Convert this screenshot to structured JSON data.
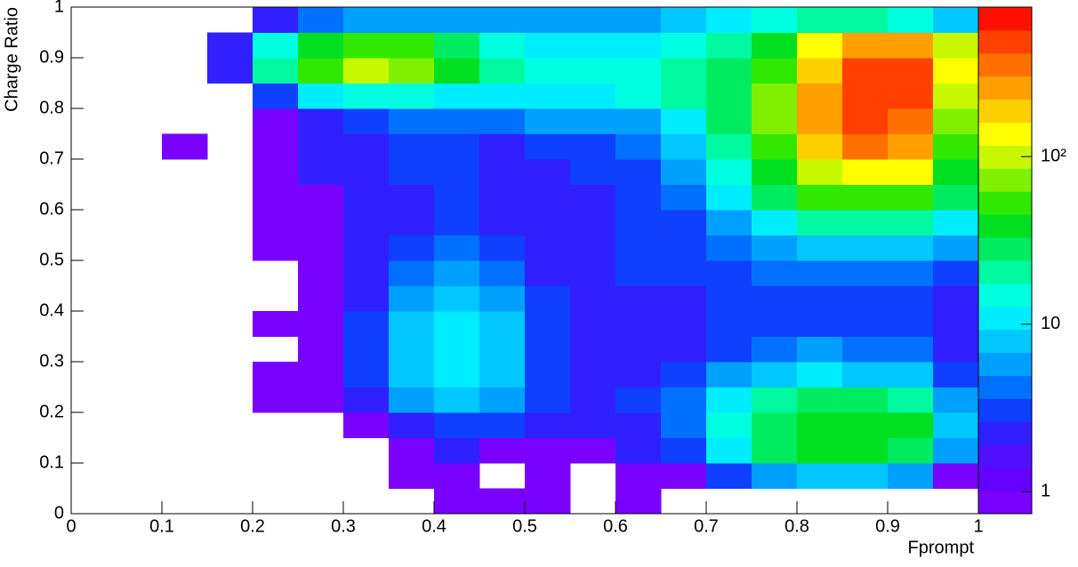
{
  "chart_data": {
    "type": "heatmap",
    "x_label": "Fprompt",
    "y_label": "Charge Ratio",
    "xlim": [
      0,
      1
    ],
    "ylim": [
      0,
      1
    ],
    "xticks": [
      0,
      0.1,
      0.2,
      0.3,
      0.4,
      0.5,
      0.6,
      0.7,
      0.8,
      0.9,
      1
    ],
    "yticks": [
      0,
      0.1,
      0.2,
      0.3,
      0.4,
      0.5,
      0.6,
      0.7,
      0.8,
      0.9,
      1
    ],
    "xbins": [
      0,
      0.05,
      0.1,
      0.15,
      0.2,
      0.25,
      0.3,
      0.35,
      0.4,
      0.45,
      0.5,
      0.55,
      0.6,
      0.65,
      0.7,
      0.75,
      0.8,
      0.85,
      0.9,
      0.95,
      1
    ],
    "ybins": [
      0,
      0.05,
      0.1,
      0.15,
      0.2,
      0.25,
      0.3,
      0.35,
      0.4,
      0.45,
      0.5,
      0.55,
      0.6,
      0.65,
      0.7,
      0.75,
      0.8,
      0.85,
      0.9,
      0.95,
      1
    ],
    "z": [
      [
        null,
        null,
        null,
        null,
        null,
        null,
        null,
        null,
        1,
        1,
        1,
        null,
        1,
        null,
        null,
        null,
        null,
        null,
        null,
        null
      ],
      [
        null,
        null,
        null,
        null,
        null,
        null,
        null,
        1,
        1,
        null,
        1,
        null,
        1,
        1,
        3,
        6,
        8,
        8,
        6,
        1
      ],
      [
        null,
        null,
        null,
        null,
        null,
        null,
        null,
        1,
        2,
        1,
        1,
        1,
        2,
        3,
        10,
        25,
        35,
        35,
        25,
        5
      ],
      [
        null,
        null,
        null,
        null,
        null,
        null,
        1,
        2,
        3,
        3,
        2,
        2,
        2,
        4,
        15,
        30,
        40,
        45,
        35,
        8
      ],
      [
        null,
        null,
        null,
        null,
        1,
        1,
        2,
        5,
        7,
        6,
        3,
        2,
        3,
        4,
        10,
        20,
        25,
        25,
        20,
        6
      ],
      [
        null,
        null,
        null,
        null,
        1,
        1,
        3,
        8,
        10,
        8,
        3,
        2,
        2,
        3,
        5,
        8,
        10,
        9,
        7,
        3
      ],
      [
        null,
        null,
        null,
        null,
        null,
        1,
        3,
        8,
        12,
        9,
        3,
        2,
        2,
        2,
        3,
        4,
        5,
        4,
        4,
        2
      ],
      [
        null,
        null,
        null,
        null,
        1,
        1,
        3,
        8,
        10,
        7,
        3,
        2,
        2,
        2,
        3,
        3,
        3,
        3,
        3,
        2
      ],
      [
        null,
        null,
        null,
        null,
        null,
        1,
        2,
        6,
        7,
        5,
        3,
        2,
        2,
        2,
        3,
        3,
        3,
        3,
        3,
        2
      ],
      [
        null,
        null,
        null,
        null,
        null,
        1,
        2,
        4,
        5,
        4,
        2,
        2,
        3,
        3,
        3,
        4,
        4,
        4,
        4,
        3
      ],
      [
        null,
        null,
        null,
        null,
        1,
        1,
        2,
        3,
        4,
        3,
        2,
        2,
        3,
        3,
        4,
        6,
        7,
        7,
        7,
        5
      ],
      [
        null,
        null,
        null,
        null,
        1,
        1,
        2,
        2,
        3,
        2,
        2,
        2,
        3,
        3,
        6,
        12,
        20,
        20,
        20,
        12
      ],
      [
        null,
        null,
        null,
        null,
        1,
        1,
        2,
        2,
        3,
        2,
        2,
        2,
        3,
        4,
        10,
        25,
        50,
        60,
        50,
        25
      ],
      [
        null,
        null,
        null,
        null,
        1,
        2,
        2,
        3,
        3,
        2,
        2,
        3,
        3,
        5,
        15,
        40,
        100,
        150,
        120,
        40
      ],
      [
        null,
        null,
        1,
        null,
        1,
        2,
        2,
        3,
        3,
        2,
        3,
        3,
        4,
        7,
        20,
        60,
        200,
        350,
        250,
        60
      ],
      [
        null,
        null,
        null,
        null,
        1,
        2,
        3,
        4,
        4,
        4,
        5,
        5,
        6,
        10,
        25,
        70,
        250,
        450,
        350,
        80
      ],
      [
        null,
        null,
        null,
        null,
        3,
        10,
        15,
        15,
        12,
        12,
        12,
        12,
        14,
        18,
        30,
        70,
        250,
        500,
        420,
        100
      ],
      [
        null,
        null,
        null,
        2,
        20,
        60,
        90,
        70,
        35,
        20,
        15,
        15,
        15,
        20,
        30,
        60,
        200,
        450,
        450,
        120
      ],
      [
        null,
        null,
        null,
        2,
        15,
        40,
        60,
        50,
        25,
        15,
        12,
        12,
        12,
        15,
        20,
        40,
        150,
        300,
        300,
        100
      ],
      [
        null,
        null,
        null,
        null,
        2,
        4,
        6,
        6,
        5,
        5,
        5,
        6,
        6,
        8,
        10,
        15,
        20,
        20,
        15,
        8
      ]
    ],
    "zlim": [
      0.74,
      780
    ],
    "zlog": true,
    "zticks": [
      1,
      10,
      {
        "value": 100,
        "label": "10²"
      }
    ],
    "palette": [
      "#7a00ff",
      "#6400ff",
      "#5010ff",
      "#3020ff",
      "#1040ff",
      "#0070ff",
      "#00a0ff",
      "#00c8ff",
      "#00ecff",
      "#00ffe0",
      "#00f8a0",
      "#00ec60",
      "#00e020",
      "#30e800",
      "#80f000",
      "#c8f800",
      "#ffff00",
      "#ffd000",
      "#ffa000",
      "#ff7000",
      "#ff4000",
      "#ff1000"
    ]
  }
}
